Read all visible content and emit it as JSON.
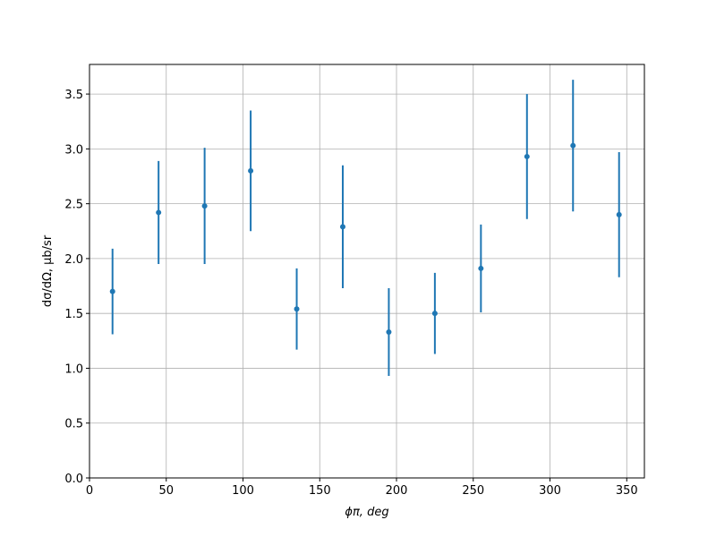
{
  "chart_data": {
    "type": "errorbar",
    "xlabel": "ϕπ, deg",
    "ylabel": "dσ/dΩ, μb/sr",
    "x": [
      15,
      45,
      75,
      105,
      135,
      165,
      195,
      225,
      255,
      285,
      315,
      345
    ],
    "series": [
      {
        "color": "#1f77b4",
        "values": [
          1.7,
          2.42,
          2.48,
          2.8,
          1.54,
          2.29,
          1.33,
          1.5,
          1.91,
          2.93,
          3.03,
          2.4
        ],
        "errors": [
          0.39,
          0.47,
          0.53,
          0.55,
          0.37,
          0.56,
          0.4,
          0.37,
          0.4,
          0.57,
          0.6,
          0.57
        ]
      }
    ],
    "xlim": [
      0,
      361.5
    ],
    "ylim": [
      0,
      3.77
    ],
    "xticks": [
      0,
      50,
      100,
      150,
      200,
      250,
      300,
      350
    ],
    "yticks": [
      {
        "value": 0,
        "label": "0.0"
      },
      {
        "value": 0.5,
        "label": "0.5"
      },
      {
        "value": 1,
        "label": "1.0"
      },
      {
        "value": 1.5,
        "label": "1.5"
      },
      {
        "value": 2,
        "label": "2.0"
      },
      {
        "value": 2.5,
        "label": "2.5"
      },
      {
        "value": 3,
        "label": "3.0"
      },
      {
        "value": 3.5,
        "label": "3.5"
      }
    ],
    "grid": true
  }
}
